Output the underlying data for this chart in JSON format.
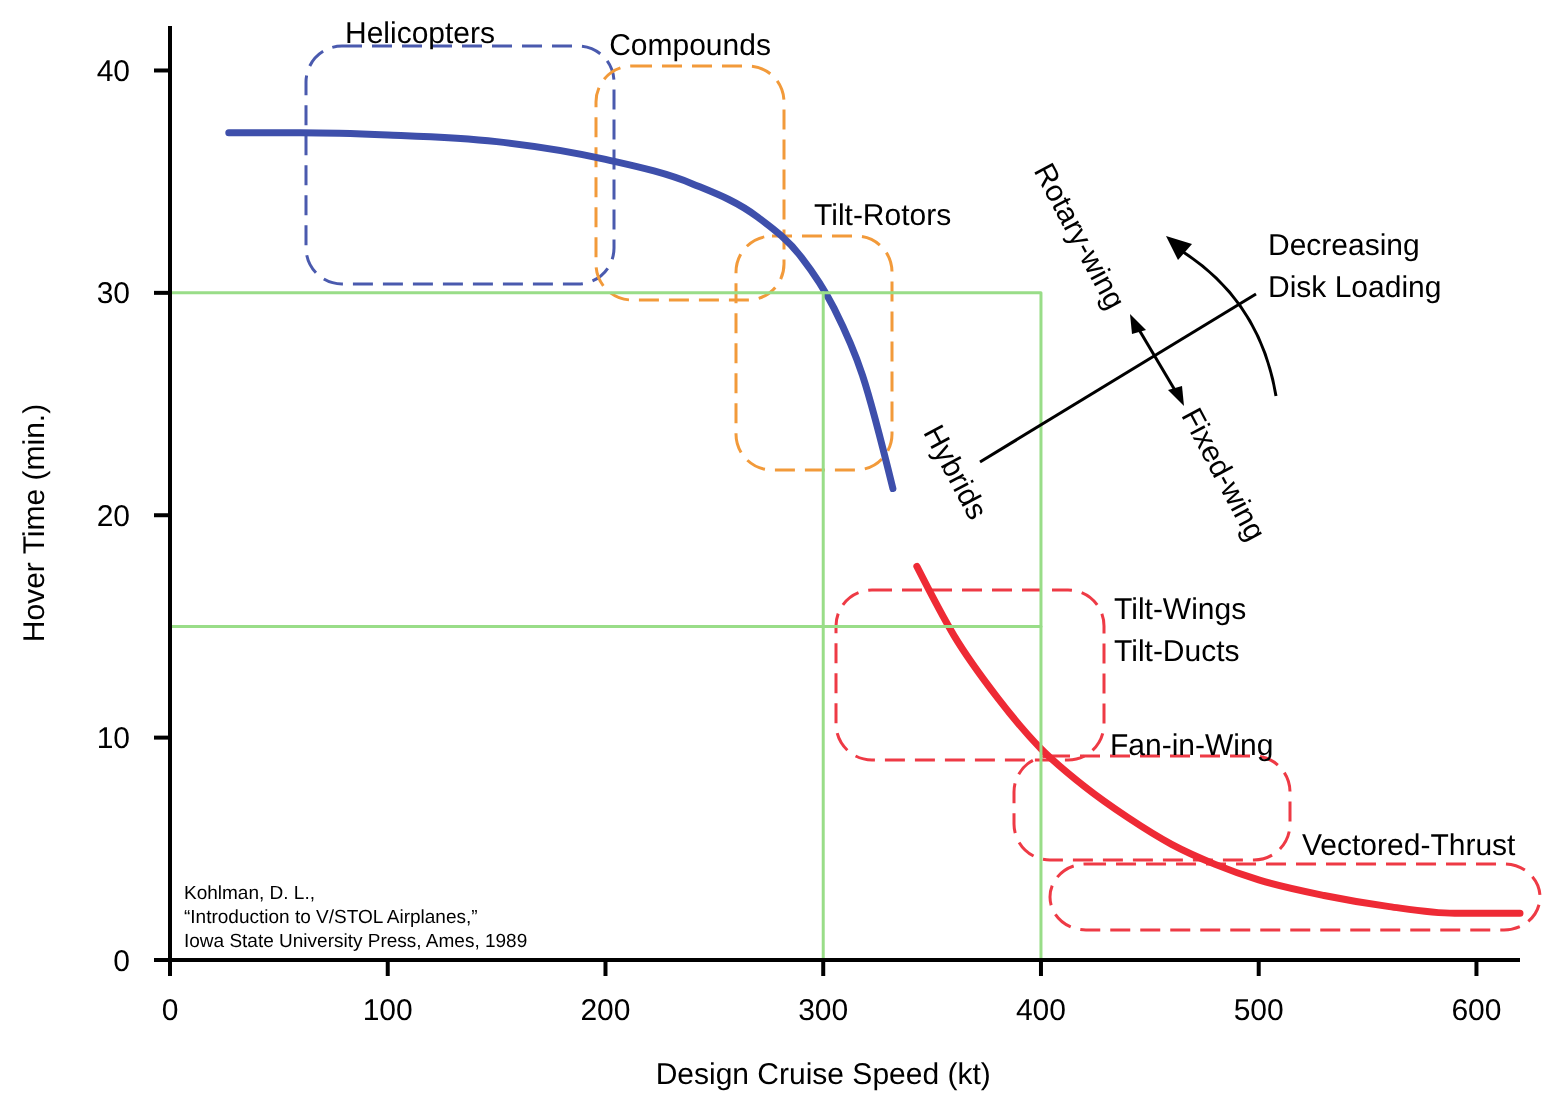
{
  "chart_data": {
    "type": "line",
    "xlabel": "Design Cruise Speed (kt)",
    "ylabel": "Hover Time (min.)",
    "xlim": [
      0,
      620
    ],
    "ylim": [
      0,
      42
    ],
    "xticks": [
      0,
      100,
      200,
      300,
      400,
      500,
      600
    ],
    "yticks": [
      0,
      10,
      20,
      30,
      40
    ],
    "grid": false,
    "marker": "none",
    "line_style": "solid",
    "series": [
      {
        "color": "#3e4fab",
        "x": [
          27,
          60,
          100,
          150,
          200,
          240,
          270,
          290,
          305,
          318,
          332
        ],
        "values": [
          37.2,
          37.2,
          37.1,
          36.8,
          36,
          34.9,
          33.4,
          31.6,
          29.3,
          26.3,
          21.2
        ]
      },
      {
        "color": "#ee2a35",
        "x": [
          343,
          360,
          380,
          400,
          420,
          440,
          460,
          480,
          500,
          530,
          560,
          590,
          620
        ],
        "values": [
          17.7,
          14.6,
          11.8,
          9.5,
          7.8,
          6.4,
          5.2,
          4.3,
          3.6,
          2.9,
          2.4,
          2.1,
          2.1
        ]
      },
      {
        "color": "#99dd88",
        "x": [
          0,
          400,
          400
        ],
        "values": [
          30,
          30,
          0
        ]
      },
      {
        "color": "#99dd88",
        "x": [
          0,
          400
        ],
        "values": [
          15,
          15
        ]
      },
      {
        "color": "#99dd88",
        "x": [
          300,
          300
        ],
        "values": [
          0,
          30
        ]
      }
    ],
    "annotations": [
      "Helicopters",
      "Compounds",
      "Tilt-Rotors",
      "Tilt-Wings\nTilt-Ducts",
      "Fan-in-Wing",
      "Vectored-Thrust",
      "Rotary-wing",
      "Fixed-wing",
      "Hybrids",
      "Decreasing\nDisk Loading",
      "Kohlman, D. L.,\n“Introduction to V/STOL Airplanes,”\nIowa State University Press, Ames, 1989"
    ]
  }
}
